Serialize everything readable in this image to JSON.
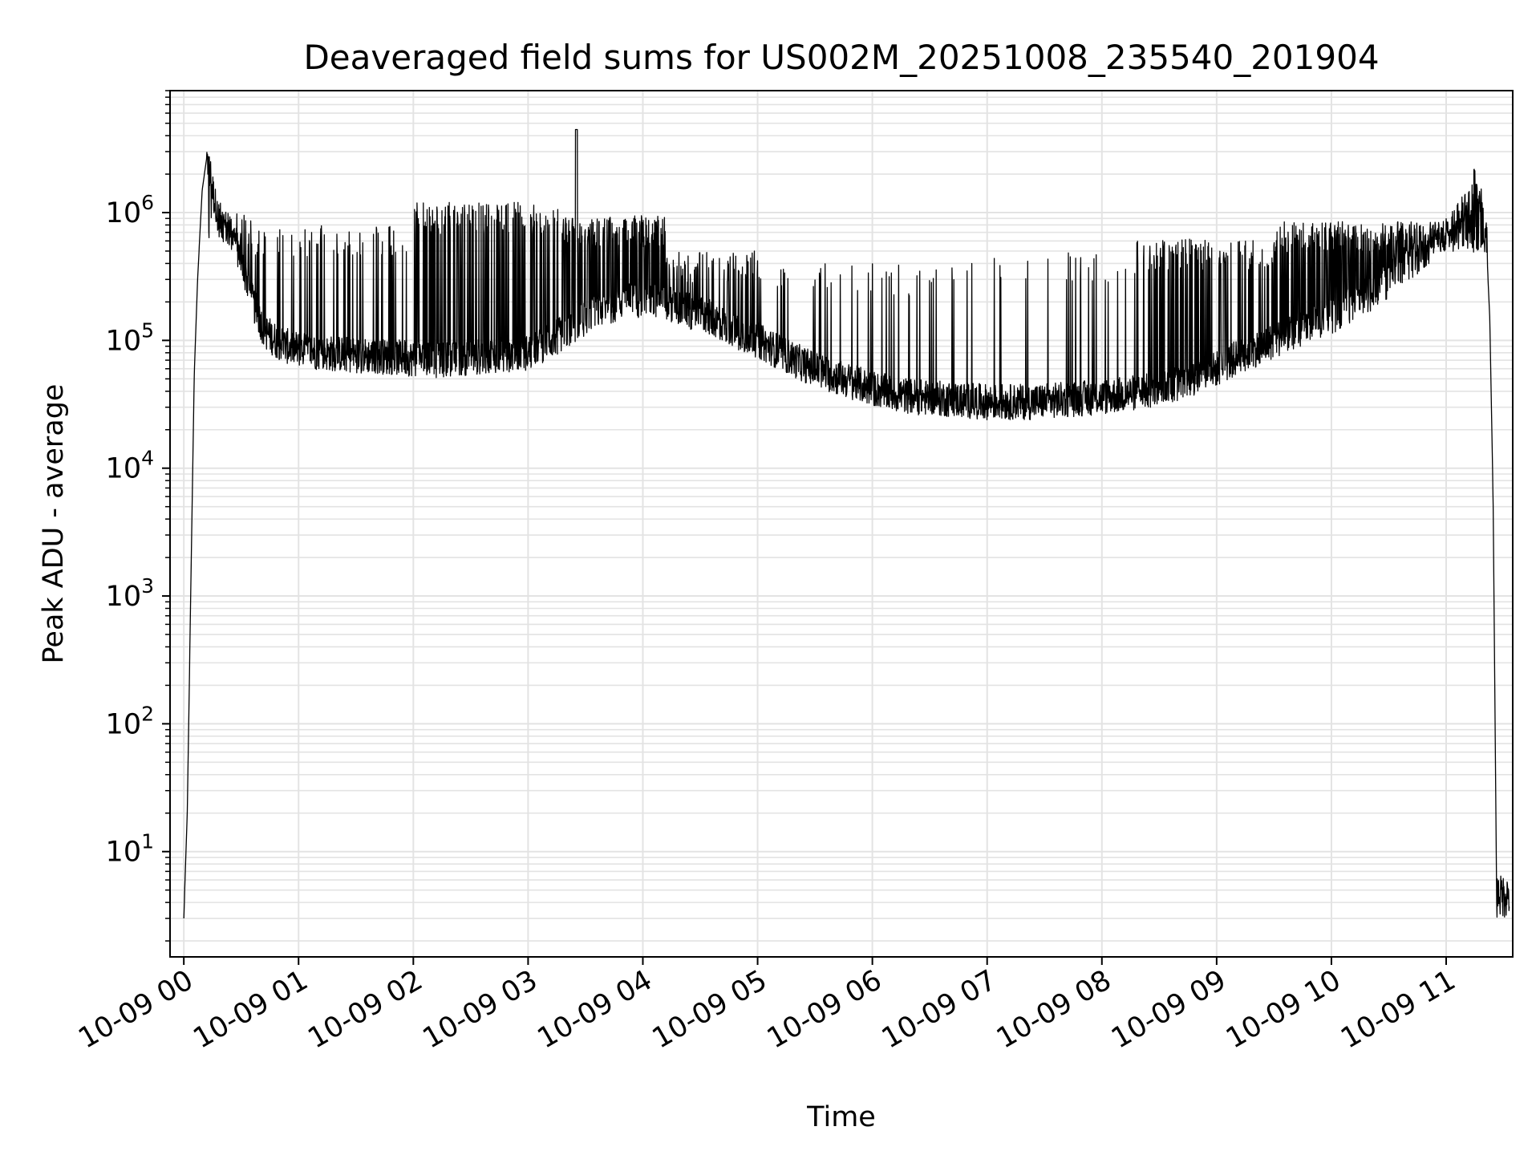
{
  "chart_data": {
    "type": "line",
    "title": "Deaveraged field sums for US002M_20251008_235540_201904",
    "xlabel": "Time",
    "ylabel": "Peak ADU - average",
    "yscale": "log",
    "ylim": [
      1.5,
      9000000
    ],
    "xlim_hours": [
      -0.12,
      11.58
    ],
    "grid": true,
    "legend": "none",
    "line_color": "#000000",
    "grid_color": "#e3e3e3",
    "x_ticks": [
      {
        "hour": 0,
        "label": "10-09 00"
      },
      {
        "hour": 1,
        "label": "10-09 01"
      },
      {
        "hour": 2,
        "label": "10-09 02"
      },
      {
        "hour": 3,
        "label": "10-09 03"
      },
      {
        "hour": 4,
        "label": "10-09 04"
      },
      {
        "hour": 5,
        "label": "10-09 05"
      },
      {
        "hour": 6,
        "label": "10-09 06"
      },
      {
        "hour": 7,
        "label": "10-09 07"
      },
      {
        "hour": 8,
        "label": "10-09 08"
      },
      {
        "hour": 9,
        "label": "10-09 09"
      },
      {
        "hour": 10,
        "label": "10-09 10"
      },
      {
        "hour": 11,
        "label": "10-09 11"
      }
    ],
    "y_ticks": [
      {
        "value": 10,
        "base": "10",
        "exp": "1"
      },
      {
        "value": 100,
        "base": "10",
        "exp": "2"
      },
      {
        "value": 1000,
        "base": "10",
        "exp": "3"
      },
      {
        "value": 10000,
        "base": "10",
        "exp": "4"
      },
      {
        "value": 100000,
        "base": "10",
        "exp": "5"
      },
      {
        "value": 1000000,
        "base": "10",
        "exp": "6"
      }
    ],
    "series": [
      {
        "name": "field sums",
        "description": "baseline envelope (hour, value); the series shows dense spikes above this baseline",
        "x": [
          0.0,
          0.03,
          0.06,
          0.09,
          0.12,
          0.16,
          0.2,
          0.23,
          0.27,
          0.3,
          0.35,
          0.4,
          0.45,
          0.5,
          0.55,
          0.6,
          0.7,
          0.8,
          0.9,
          1.0,
          1.2,
          1.4,
          1.6,
          1.8,
          2.0,
          2.2,
          2.4,
          2.6,
          2.8,
          3.0,
          3.2,
          3.4,
          3.6,
          3.8,
          4.0,
          4.2,
          4.4,
          4.6,
          4.8,
          5.0,
          5.2,
          5.4,
          5.6,
          5.8,
          6.0,
          6.2,
          6.4,
          6.6,
          6.8,
          7.0,
          7.2,
          7.4,
          7.6,
          7.8,
          8.0,
          8.2,
          8.4,
          8.6,
          8.8,
          9.0,
          9.2,
          9.4,
          9.6,
          9.8,
          10.0,
          10.2,
          10.4,
          10.6,
          10.8,
          11.0,
          11.1,
          11.2,
          11.25,
          11.3,
          11.35,
          11.38,
          11.41,
          11.44,
          11.47,
          11.5,
          11.55
        ],
        "y": [
          3,
          20,
          1000,
          50000,
          300000,
          1500000,
          2700000,
          2000000,
          1200000,
          900000,
          800000,
          700000,
          600000,
          400000,
          300000,
          200000,
          120000,
          100000,
          90000,
          85000,
          80000,
          78000,
          76000,
          74000,
          72000,
          70000,
          72000,
          75000,
          78000,
          80000,
          100000,
          130000,
          170000,
          200000,
          210000,
          200000,
          170000,
          150000,
          120000,
          100000,
          80000,
          65000,
          55000,
          48000,
          42000,
          38000,
          36000,
          35000,
          34000,
          33000,
          33000,
          33000,
          34000,
          35000,
          36000,
          38000,
          40000,
          45000,
          50000,
          60000,
          75000,
          90000,
          110000,
          130000,
          150000,
          200000,
          250000,
          350000,
          500000,
          700000,
          850000,
          1200000,
          1700000,
          1200000,
          600000,
          150000,
          5000,
          4,
          4.5,
          5,
          5
        ]
      }
    ]
  }
}
